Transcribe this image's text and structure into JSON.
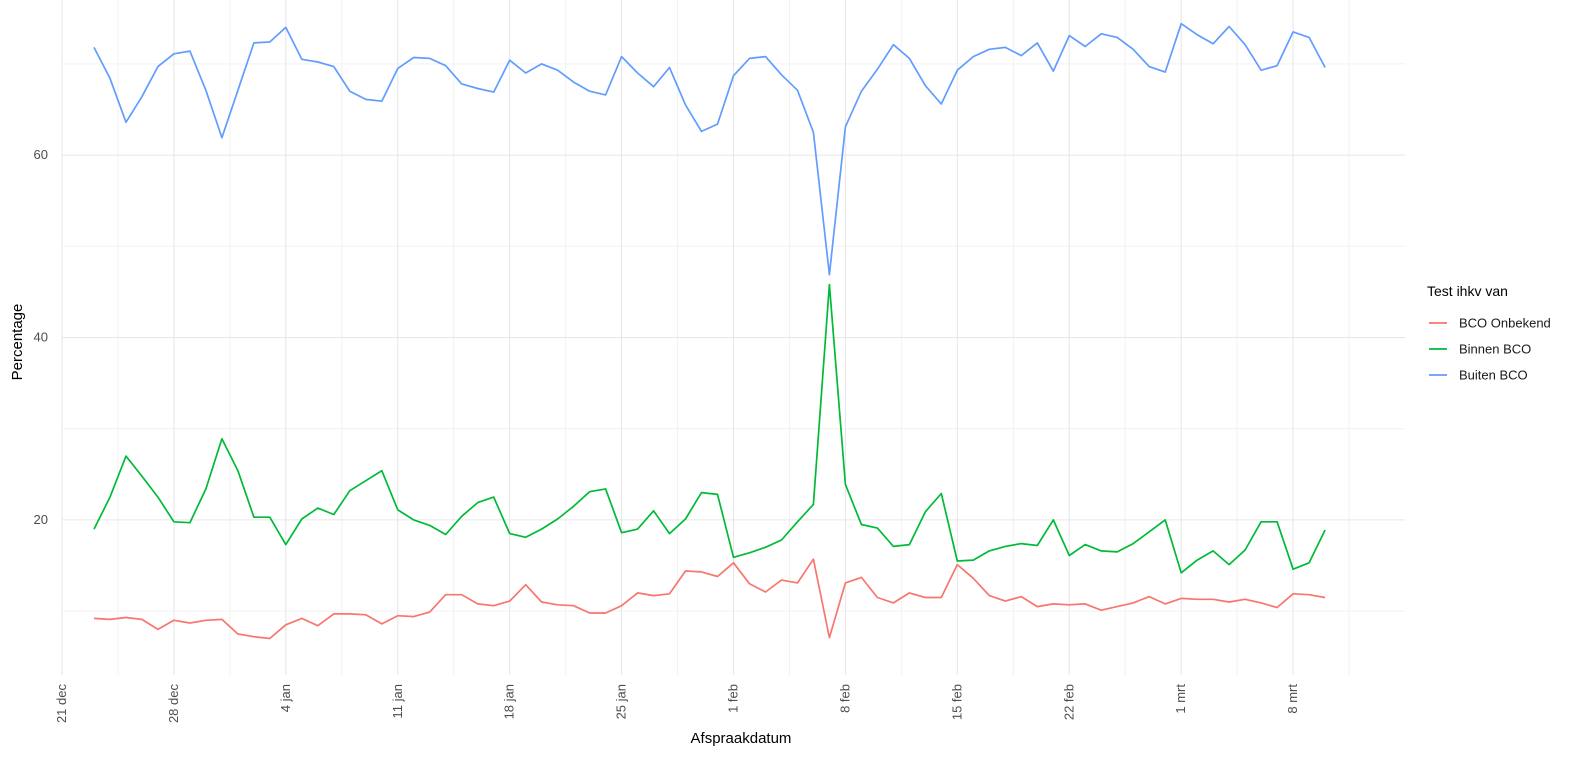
{
  "chart_data": {
    "type": "line",
    "title": "",
    "xlabel": "Afspraakdatum",
    "ylabel": "Percentage",
    "x_start": "2020-12-21",
    "x_end": "2021-03-15",
    "ylim": [
      3,
      77
    ],
    "x_ticks": [
      "21 dec",
      "28 dec",
      "4 jan",
      "11 jan",
      "18 jan",
      "25 jan",
      "1 feb",
      "8 feb",
      "15 feb",
      "22 feb",
      "1 mrt",
      "8 mrt"
    ],
    "y_ticks": [
      20,
      40,
      60
    ],
    "grid": true,
    "legend": {
      "title": "Test ihkv van",
      "position": "right"
    },
    "colors": {
      "BCO Onbekend": "#F8766D",
      "Binnen BCO": "#00BA38",
      "Buiten BCO": "#619CFF"
    },
    "dates": [
      "2020-12-23",
      "2020-12-24",
      "2020-12-25",
      "2020-12-26",
      "2020-12-27",
      "2020-12-28",
      "2020-12-29",
      "2020-12-30",
      "2020-12-31",
      "2021-01-01",
      "2021-01-02",
      "2021-01-03",
      "2021-01-04",
      "2021-01-05",
      "2021-01-06",
      "2021-01-07",
      "2021-01-08",
      "2021-01-09",
      "2021-01-10",
      "2021-01-11",
      "2021-01-12",
      "2021-01-13",
      "2021-01-14",
      "2021-01-15",
      "2021-01-16",
      "2021-01-17",
      "2021-01-18",
      "2021-01-19",
      "2021-01-20",
      "2021-01-21",
      "2021-01-22",
      "2021-01-23",
      "2021-01-24",
      "2021-01-25",
      "2021-01-26",
      "2021-01-27",
      "2021-01-28",
      "2021-01-29",
      "2021-01-30",
      "2021-01-31",
      "2021-02-01",
      "2021-02-02",
      "2021-02-03",
      "2021-02-04",
      "2021-02-05",
      "2021-02-06",
      "2021-02-07",
      "2021-02-08",
      "2021-02-09",
      "2021-02-10",
      "2021-02-11",
      "2021-02-12",
      "2021-02-13",
      "2021-02-14",
      "2021-02-15",
      "2021-02-16",
      "2021-02-17",
      "2021-02-18",
      "2021-02-19",
      "2021-02-20",
      "2021-02-21",
      "2021-02-22",
      "2021-02-23",
      "2021-02-24",
      "2021-02-25",
      "2021-02-26",
      "2021-02-27",
      "2021-02-28",
      "2021-03-01",
      "2021-03-02",
      "2021-03-03",
      "2021-03-04",
      "2021-03-05",
      "2021-03-06",
      "2021-03-07",
      "2021-03-08",
      "2021-03-09",
      "2021-03-10"
    ],
    "series": [
      {
        "name": "BCO Onbekend",
        "values": [
          9.2,
          9.1,
          9.3,
          9.1,
          8.0,
          9.0,
          8.7,
          9.0,
          9.1,
          7.5,
          7.2,
          7.0,
          8.5,
          9.2,
          8.4,
          9.7,
          9.7,
          9.6,
          8.6,
          9.5,
          9.4,
          9.9,
          11.8,
          11.8,
          10.8,
          10.6,
          11.1,
          12.9,
          11.0,
          10.7,
          10.6,
          9.8,
          9.8,
          10.6,
          12.0,
          11.7,
          11.9,
          14.4,
          14.3,
          13.8,
          15.3,
          13.0,
          12.1,
          13.4,
          13.1,
          15.7,
          7.1,
          13.1,
          13.7,
          11.5,
          10.9,
          12.0,
          11.5,
          11.5,
          15.1,
          13.6,
          11.7,
          11.1,
          11.6,
          10.5,
          10.8,
          10.7,
          10.8,
          10.1,
          10.5,
          10.9,
          11.6,
          10.8,
          11.4,
          11.3,
          11.3,
          11.0,
          11.3,
          10.9,
          10.4,
          11.9,
          11.8,
          11.5
        ]
      },
      {
        "name": "Binnen BCO",
        "values": [
          19.0,
          22.5,
          27.0,
          24.8,
          22.5,
          19.8,
          19.7,
          23.4,
          28.9,
          25.4,
          20.3,
          20.3,
          17.3,
          20.1,
          21.3,
          20.6,
          23.2,
          24.3,
          25.4,
          21.1,
          20.0,
          19.4,
          18.4,
          20.4,
          21.9,
          22.5,
          18.5,
          18.1,
          19.0,
          20.1,
          21.5,
          23.1,
          23.4,
          18.6,
          19.0,
          21.0,
          18.5,
          20.1,
          23.0,
          22.8,
          15.9,
          16.4,
          17.0,
          17.8,
          19.8,
          21.7,
          45.8,
          23.9,
          19.5,
          19.1,
          17.1,
          17.3,
          20.9,
          22.9,
          15.5,
          15.6,
          16.6,
          17.1,
          17.4,
          17.2,
          20.0,
          16.1,
          17.3,
          16.6,
          16.5,
          17.4,
          18.7,
          20.0,
          14.2,
          15.6,
          16.6,
          15.1,
          16.7,
          19.8,
          19.8,
          14.6,
          15.3,
          18.9
        ]
      },
      {
        "name": "Buiten BCO",
        "values": [
          71.8,
          68.4,
          63.6,
          66.4,
          69.7,
          71.1,
          71.4,
          67.1,
          61.9,
          67.1,
          72.3,
          72.4,
          74.0,
          70.5,
          70.2,
          69.7,
          67.0,
          66.1,
          65.9,
          69.5,
          70.7,
          70.6,
          69.8,
          67.8,
          67.3,
          66.9,
          70.4,
          69.0,
          70.0,
          69.3,
          68.0,
          67.0,
          66.6,
          70.8,
          69.0,
          67.5,
          69.6,
          65.5,
          62.6,
          63.4,
          68.7,
          70.6,
          70.8,
          68.8,
          67.1,
          62.5,
          46.9,
          63.1,
          67.0,
          69.4,
          72.1,
          70.6,
          67.6,
          65.6,
          69.3,
          70.8,
          71.6,
          71.8,
          70.9,
          72.3,
          69.2,
          73.1,
          71.9,
          73.3,
          72.9,
          71.6,
          69.7,
          69.1,
          74.4,
          73.2,
          72.2,
          74.1,
          72.1,
          69.3,
          69.8,
          73.5,
          72.9,
          69.6
        ]
      }
    ]
  }
}
